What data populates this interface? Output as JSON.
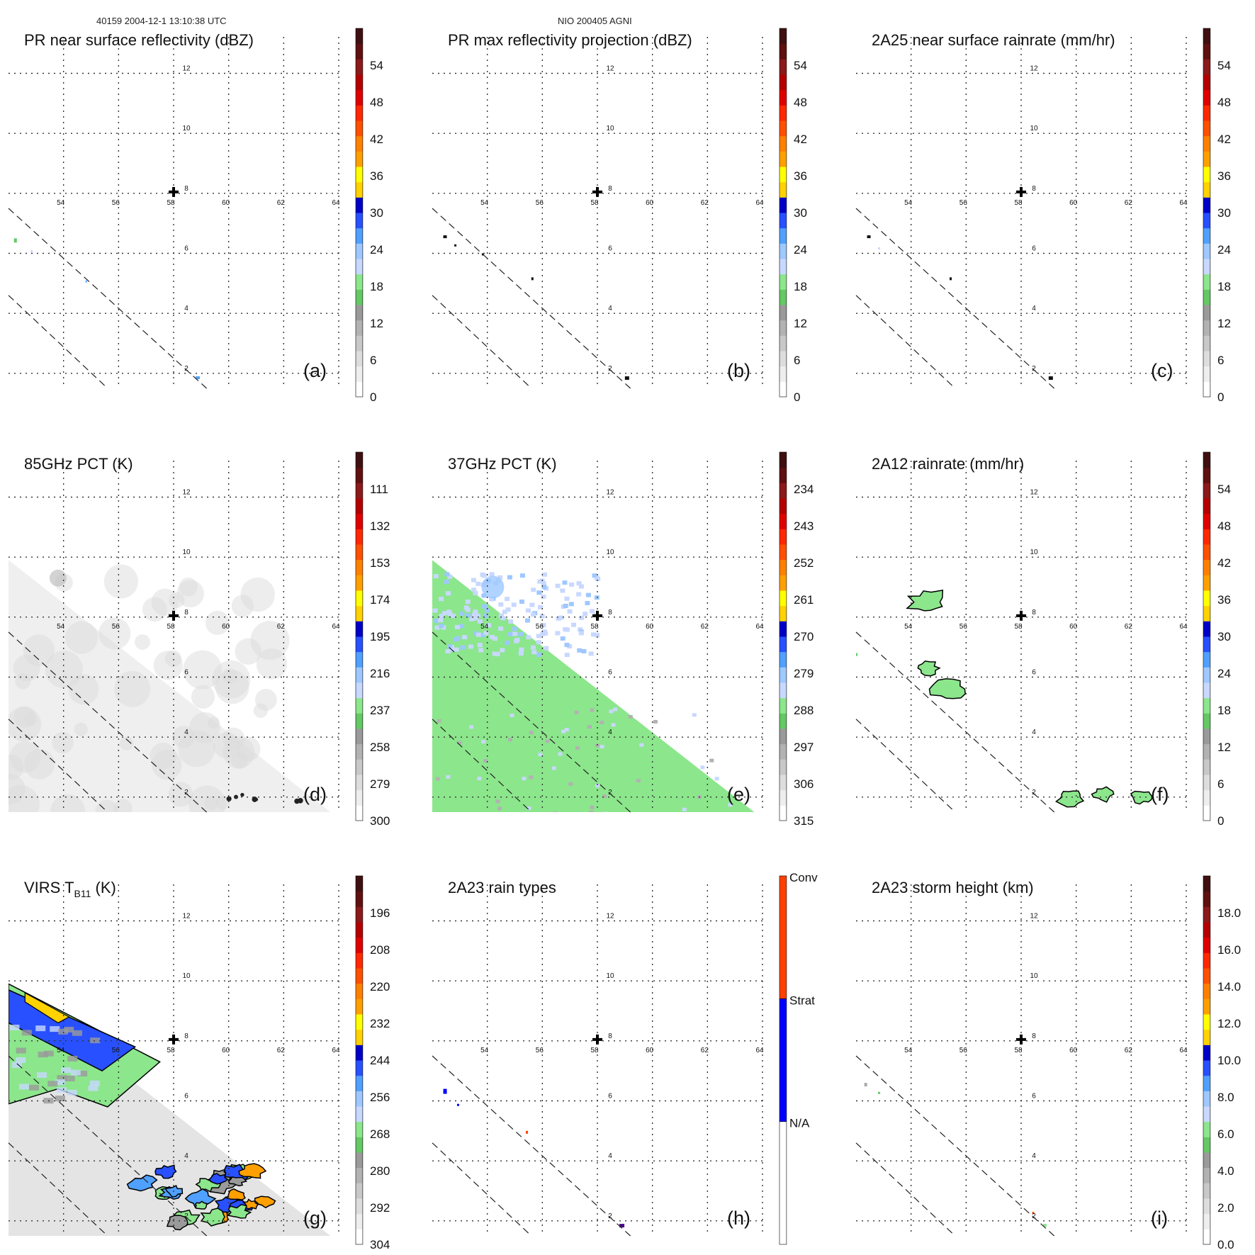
{
  "header": {
    "left": "40159 2004-12-1 13:10:38 UTC",
    "center": "NIO 200405 AGNI"
  },
  "map": {
    "lon_ticks": [
      "54",
      "56",
      "58",
      "60",
      "62",
      "64"
    ],
    "lat_ticks": [
      "2",
      "4",
      "6",
      "8",
      "10",
      "12"
    ],
    "center_marker": "+"
  },
  "colors": {
    "standard_bins": [
      "#ffffff",
      "#eeeeee",
      "#dddddd",
      "#c8c8c8",
      "#b2b2b2",
      "#9a9a9a",
      "#64c864",
      "#8ce68c",
      "#c8d8ff",
      "#9ec8ff",
      "#50a0ff",
      "#2850ff",
      "#0000c8",
      "#ffd200",
      "#ffff00",
      "#ffa000",
      "#ff8000",
      "#ff5000",
      "#ff2800",
      "#e00000",
      "#b40000",
      "#8b1a1a",
      "#601010",
      "#401010"
    ],
    "rain_types": [
      "#ffffff",
      "#0000ff",
      "#ff4000"
    ]
  },
  "chart_data": [
    {
      "type": "heatmap",
      "panel_label": "(a)",
      "title": "PR near surface reflectivity (dBZ)",
      "colorbar_ticks": [
        "0",
        "6",
        "12",
        "18",
        "24",
        "30",
        "36",
        "42",
        "48",
        "54"
      ],
      "colorbar_range": [
        0,
        60
      ]
    },
    {
      "type": "heatmap",
      "panel_label": "(b)",
      "title": "PR max reflectivity projection (dBZ)",
      "colorbar_ticks": [
        "0",
        "6",
        "12",
        "18",
        "24",
        "30",
        "36",
        "42",
        "48",
        "54"
      ],
      "colorbar_range": [
        0,
        60
      ]
    },
    {
      "type": "heatmap",
      "panel_label": "(c)",
      "title": "2A25 near surface rainrate (mm/hr)",
      "colorbar_ticks": [
        "0",
        "6",
        "12",
        "18",
        "24",
        "30",
        "36",
        "42",
        "48",
        "54"
      ],
      "colorbar_range": [
        0,
        60
      ]
    },
    {
      "type": "heatmap",
      "panel_label": "(d)",
      "title": "85GHz PCT (K)",
      "colorbar_ticks": [
        "300",
        "279",
        "258",
        "237",
        "216",
        "195",
        "174",
        "153",
        "132",
        "111"
      ],
      "colorbar_range": [
        300,
        90
      ]
    },
    {
      "type": "heatmap",
      "panel_label": "(e)",
      "title": "37GHz PCT (K)",
      "colorbar_ticks": [
        "315",
        "306",
        "297",
        "288",
        "279",
        "270",
        "261",
        "252",
        "243",
        "234"
      ],
      "colorbar_range": [
        315,
        225
      ]
    },
    {
      "type": "heatmap",
      "panel_label": "(f)",
      "title": "2A12 rainrate (mm/hr)",
      "colorbar_ticks": [
        "0",
        "6",
        "12",
        "18",
        "24",
        "30",
        "36",
        "42",
        "48",
        "54"
      ],
      "colorbar_range": [
        0,
        60
      ]
    },
    {
      "type": "heatmap",
      "panel_label": "(g)",
      "title_main": "VIRS T",
      "title_sub": "B11",
      "title_unit": " (K)",
      "colorbar_ticks": [
        "304",
        "292",
        "280",
        "268",
        "256",
        "244",
        "232",
        "220",
        "208",
        "196"
      ],
      "colorbar_range": [
        304,
        184
      ]
    },
    {
      "type": "heatmap",
      "panel_label": "(h)",
      "title": "2A23 rain types",
      "colorbar_categories": [
        "N/A",
        "Strat",
        "Conv"
      ]
    },
    {
      "type": "heatmap",
      "panel_label": "(i)",
      "title": "2A23 storm height (km)",
      "colorbar_ticks": [
        "0.0",
        "2.0",
        "4.0",
        "6.0",
        "8.0",
        "10.0",
        "12.0",
        "14.0",
        "16.0",
        "18.0"
      ],
      "colorbar_range": [
        0,
        20
      ]
    }
  ]
}
